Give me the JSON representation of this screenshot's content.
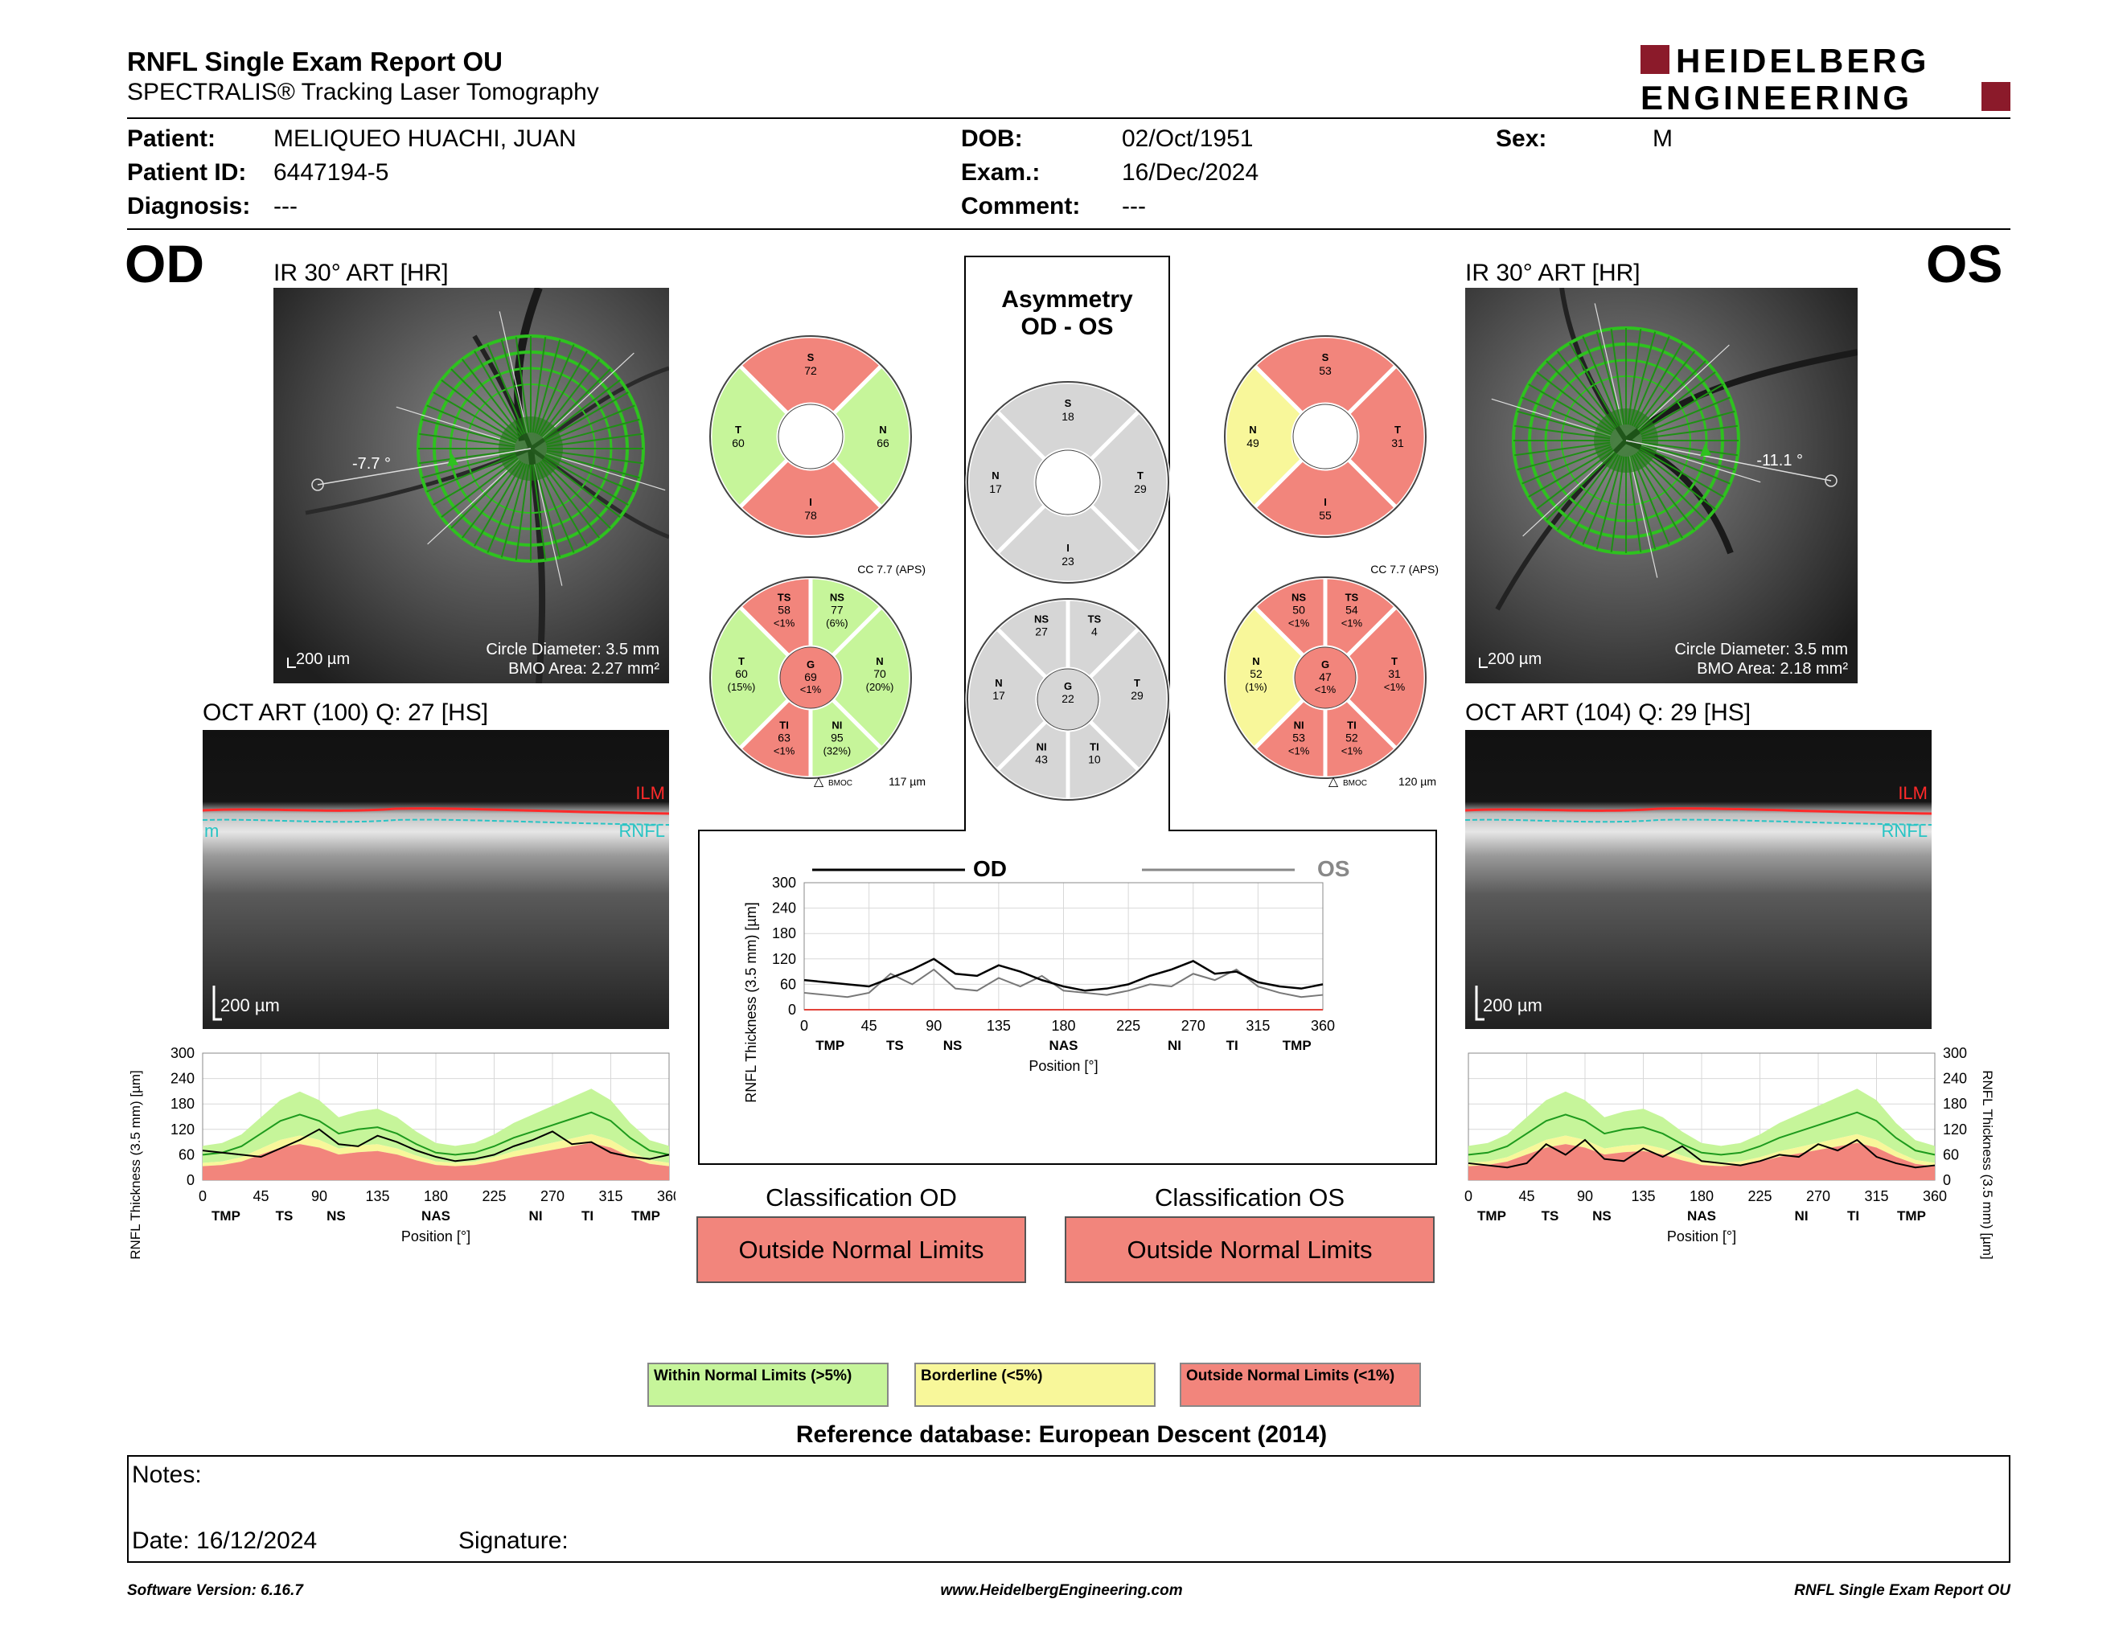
{
  "header": {
    "title": "RNFL Single Exam Report OU",
    "subtitle": "SPECTRALIS® Tracking Laser Tomography",
    "logo_line1": "HEIDELBERG",
    "logo_line2": "ENGINEERING"
  },
  "patient": {
    "patient_label": "Patient:",
    "patient_value": "MELIQUEO HUACHI, JUAN",
    "id_label": "Patient ID:",
    "id_value": "6447194-5",
    "diagnosis_label": "Diagnosis:",
    "diagnosis_value": "---",
    "dob_label": "DOB:",
    "dob_value": "02/Oct/1951",
    "exam_label": "Exam.:",
    "exam_value": "16/Dec/2024",
    "comment_label": "Comment:",
    "comment_value": "---",
    "sex_label": "Sex:",
    "sex_value": "M"
  },
  "od": {
    "eye": "OD",
    "ir_caption": "IR 30° ART [HR]",
    "angle": "-7.7 °",
    "scale": "200 µm",
    "circle_diameter": "Circle Diameter: 3.5 mm",
    "bmo_area": "BMO Area: 2.27 mm²",
    "oct_caption": "OCT ART (100) Q: 27 [HS]",
    "oct_scale": "200 µm",
    "ilm": "ILM",
    "rnfl": "RNFL",
    "rnfl_left": "m",
    "cc": "CC 7.7 (APS)",
    "bmoc": "117 µm",
    "bmoc_label": "BMOC",
    "quad": {
      "S": "72",
      "N": "66",
      "I": "78",
      "T": "60"
    },
    "sectors": {
      "TS": {
        "v": "58",
        "p": "<1%"
      },
      "NS": {
        "v": "77",
        "p": "(6%)"
      },
      "N": {
        "v": "70",
        "p": "(20%)"
      },
      "NI": {
        "v": "95",
        "p": "(32%)"
      },
      "TI": {
        "v": "63",
        "p": "<1%"
      },
      "T": {
        "v": "60",
        "p": "(15%)"
      },
      "G": {
        "v": "69",
        "p": "<1%"
      }
    },
    "classification_label": "Classification OD",
    "classification_value": "Outside Normal Limits"
  },
  "os": {
    "eye": "OS",
    "ir_caption": "IR 30° ART [HR]",
    "angle": "-11.1 °",
    "scale": "200 µm",
    "circle_diameter": "Circle Diameter: 3.5 mm",
    "bmo_area": "BMO Area: 2.18 mm²",
    "oct_caption": "OCT ART (104) Q: 29 [HS]",
    "oct_scale": "200 µm",
    "ilm": "ILM",
    "rnfl": "RNFL",
    "cc": "CC 7.7 (APS)",
    "bmoc": "120 µm",
    "bmoc_label": "BMOC",
    "quad": {
      "S": "53",
      "N": "49",
      "I": "55",
      "T": "31"
    },
    "sectors": {
      "NS": {
        "v": "50",
        "p": "<1%"
      },
      "TS": {
        "v": "54",
        "p": "<1%"
      },
      "T": {
        "v": "31",
        "p": "<1%"
      },
      "TI": {
        "v": "52",
        "p": "<1%"
      },
      "NI": {
        "v": "53",
        "p": "<1%"
      },
      "N": {
        "v": "52",
        "p": "(1%)"
      },
      "G": {
        "v": "47",
        "p": "<1%"
      }
    },
    "classification_label": "Classification OS",
    "classification_value": "Outside Normal Limits"
  },
  "asym": {
    "title1": "Asymmetry",
    "title2": "OD - OS",
    "quad": {
      "S": "18",
      "T": "29",
      "I": "23",
      "N": "17"
    },
    "sectors": {
      "NS": "27",
      "TS": "4",
      "T": "29",
      "TI": "10",
      "NI": "43",
      "N": "17",
      "G": "22"
    }
  },
  "colors": {
    "green": "#c6f59a",
    "yellow": "#f8f79a",
    "red": "#f2857c",
    "gray": "#d6d6d6",
    "scan_green": "#2ec21f"
  },
  "legend": {
    "within": "Within Normal Limits (>5%)",
    "borderline": "Borderline (<5%)",
    "outside": "Outside Normal Limits (<1%)"
  },
  "reference": "Reference database: European Descent (2014)",
  "notes": {
    "label": "Notes:",
    "date": "Date: 16/12/2024",
    "signature": "Signature:"
  },
  "footer": {
    "version": "Software Version: 6.16.7",
    "url": "www.HeidelbergEngineering.com",
    "report": "RNFL Single Exam Report OU"
  },
  "chart_data": [
    {
      "id": "od-profile",
      "type": "area",
      "ylabel": "RNFL Thickness (3.5 mm) [µm]",
      "xlabel": "Position [°]",
      "ylim": [
        0,
        300
      ],
      "xlim": [
        0,
        360
      ],
      "yticks": [
        0,
        60,
        120,
        180,
        240,
        300
      ],
      "xticks": [
        0,
        45,
        90,
        135,
        180,
        225,
        270,
        315,
        360
      ],
      "sector_labels": [
        "TMP",
        "TS",
        "NS",
        "NAS",
        "NI",
        "TI",
        "TMP"
      ],
      "sector_positions": [
        18,
        63,
        103,
        180,
        257,
        297,
        342
      ],
      "x": [
        0,
        15,
        30,
        45,
        60,
        75,
        90,
        105,
        120,
        135,
        150,
        165,
        180,
        195,
        210,
        225,
        240,
        255,
        270,
        285,
        300,
        315,
        330,
        345,
        360
      ],
      "measured": [
        70,
        65,
        60,
        55,
        75,
        95,
        120,
        85,
        80,
        105,
        90,
        70,
        55,
        45,
        50,
        60,
        80,
        95,
        115,
        85,
        90,
        65,
        55,
        50,
        60
      ],
      "normal_mean": [
        60,
        65,
        80,
        110,
        140,
        155,
        140,
        110,
        120,
        125,
        110,
        85,
        65,
        60,
        65,
        80,
        100,
        115,
        130,
        145,
        160,
        140,
        100,
        70,
        60
      ]
    },
    {
      "id": "os-profile",
      "type": "area",
      "ylabel": "RNFL Thickness (3.5 mm) [µm]",
      "xlabel": "Position [°]",
      "ylim": [
        0,
        300
      ],
      "xlim": [
        0,
        360
      ],
      "yticks": [
        0,
        60,
        120,
        180,
        240,
        300
      ],
      "xticks": [
        0,
        45,
        90,
        135,
        180,
        225,
        270,
        315,
        360
      ],
      "sector_labels": [
        "TMP",
        "TS",
        "NS",
        "NAS",
        "NI",
        "TI",
        "TMP"
      ],
      "sector_positions": [
        18,
        63,
        103,
        180,
        257,
        297,
        342
      ],
      "x": [
        0,
        15,
        30,
        45,
        60,
        75,
        90,
        105,
        120,
        135,
        150,
        165,
        180,
        195,
        210,
        225,
        240,
        255,
        270,
        285,
        300,
        315,
        330,
        345,
        360
      ],
      "measured": [
        40,
        35,
        30,
        40,
        85,
        60,
        95,
        50,
        45,
        75,
        55,
        80,
        45,
        40,
        35,
        45,
        60,
        55,
        85,
        70,
        95,
        55,
        40,
        30,
        35
      ],
      "normal_mean": [
        60,
        65,
        80,
        110,
        140,
        155,
        140,
        110,
        120,
        125,
        110,
        85,
        65,
        60,
        65,
        80,
        100,
        115,
        130,
        145,
        160,
        140,
        100,
        70,
        60
      ]
    },
    {
      "id": "od-os-compare",
      "type": "line",
      "ylabel": "RNFL Thickness (3.5 mm) [µm]",
      "xlabel": "Position [°]",
      "ylim": [
        0,
        300
      ],
      "xlim": [
        0,
        360
      ],
      "yticks": [
        0,
        60,
        120,
        180,
        240,
        300
      ],
      "xticks": [
        0,
        45,
        90,
        135,
        180,
        225,
        270,
        315,
        360
      ],
      "sector_labels": [
        "TMP",
        "TS",
        "NS",
        "NAS",
        "NI",
        "TI",
        "TMP"
      ],
      "sector_positions": [
        18,
        63,
        103,
        180,
        257,
        297,
        342
      ],
      "x": [
        0,
        15,
        30,
        45,
        60,
        75,
        90,
        105,
        120,
        135,
        150,
        165,
        180,
        195,
        210,
        225,
        240,
        255,
        270,
        285,
        300,
        315,
        330,
        345,
        360
      ],
      "series": [
        {
          "name": "OD",
          "values": [
            70,
            65,
            60,
            55,
            75,
            95,
            120,
            85,
            80,
            105,
            90,
            70,
            55,
            45,
            50,
            60,
            80,
            95,
            115,
            85,
            90,
            65,
            55,
            50,
            60
          ]
        },
        {
          "name": "OS",
          "values": [
            40,
            35,
            30,
            40,
            85,
            60,
            95,
            50,
            45,
            75,
            55,
            80,
            45,
            40,
            35,
            45,
            60,
            55,
            85,
            70,
            95,
            55,
            40,
            30,
            35
          ]
        }
      ]
    }
  ]
}
